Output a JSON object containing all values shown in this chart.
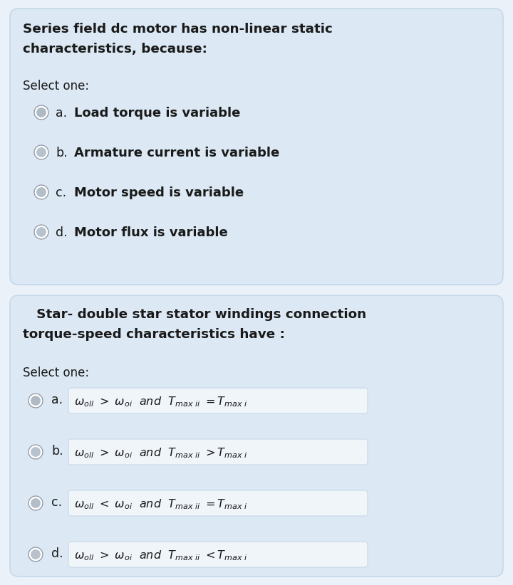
{
  "bg_color": "#eaf1f8",
  "box_color": "#dce9f5",
  "box_border_color": "#c0d4e8",
  "text_color": "#1a1a1a",
  "q1_title_line1": "Series field dc motor has non-linear static",
  "q1_title_line2": "characteristics, because:",
  "q1_select": "Select one:",
  "q1_options": [
    "Load torque is variable",
    "Armature current is variable",
    "Motor speed is variable",
    "Motor flux is variable"
  ],
  "q1_labels": [
    "a.",
    "b.",
    "c.",
    "d."
  ],
  "q2_title_line1": "   Star- double star stator windings connection",
  "q2_title_line2": "torque-speed characteristics have :",
  "q2_select": "Select one:",
  "q2_labels": [
    "a.",
    "b.",
    "c.",
    "d."
  ],
  "math_box_color": "#f0f5fa",
  "math_box_border": "#c8d8e8"
}
